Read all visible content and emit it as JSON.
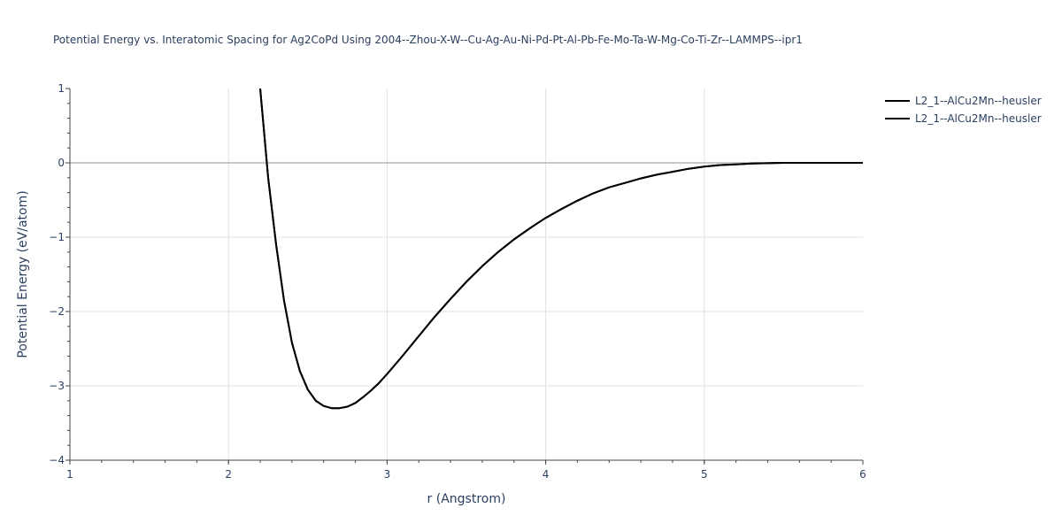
{
  "chart_data": {
    "type": "line",
    "title": "Potential Energy vs. Interatomic Spacing for Ag2CoPd Using 2004--Zhou-X-W--Cu-Ag-Au-Ni-Pd-Pt-Al-Pb-Fe-Mo-Ta-W-Mg-Co-Ti-Zr--LAMMPS--ipr1",
    "xlabel": "r (Angstrom)",
    "ylabel": "Potential Energy (eV/atom)",
    "xlim": [
      1,
      6
    ],
    "ylim": [
      -4,
      1
    ],
    "xticks": [
      1,
      2,
      3,
      4,
      5,
      6
    ],
    "yticks": [
      1,
      0,
      -1,
      -2,
      -3,
      -4
    ],
    "x_tick_labels": [
      "1",
      "2",
      "3",
      "4",
      "5",
      "6"
    ],
    "y_tick_labels": [
      "1",
      "0",
      "−1",
      "−2",
      "−3",
      "−4"
    ],
    "grid": true,
    "legend_position": "top-right",
    "series": [
      {
        "name": "L2_1--AlCu2Mn--heusler",
        "color": "#000000",
        "x": [
          2.2,
          2.25,
          2.3,
          2.35,
          2.4,
          2.45,
          2.5,
          2.55,
          2.6,
          2.65,
          2.7,
          2.75,
          2.8,
          2.85,
          2.9,
          2.95,
          3.0,
          3.1,
          3.2,
          3.3,
          3.4,
          3.5,
          3.6,
          3.7,
          3.8,
          3.9,
          4.0,
          4.1,
          4.2,
          4.3,
          4.4,
          4.5,
          4.6,
          4.7,
          4.8,
          4.9,
          5.0,
          5.1,
          5.2,
          5.3,
          5.4,
          5.5,
          5.6,
          5.8,
          6.0
        ],
        "y": [
          1.0,
          -0.2,
          -1.1,
          -1.85,
          -2.42,
          -2.8,
          -3.05,
          -3.2,
          -3.27,
          -3.3,
          -3.3,
          -3.28,
          -3.23,
          -3.15,
          -3.06,
          -2.96,
          -2.84,
          -2.59,
          -2.33,
          -2.07,
          -1.83,
          -1.6,
          -1.39,
          -1.2,
          -1.03,
          -0.88,
          -0.74,
          -0.62,
          -0.51,
          -0.41,
          -0.33,
          -0.27,
          -0.21,
          -0.16,
          -0.12,
          -0.08,
          -0.05,
          -0.03,
          -0.02,
          -0.01,
          -0.005,
          0.0,
          0.0,
          0.0,
          0.0
        ]
      },
      {
        "name": "L2_1--AlCu2Mn--heusler",
        "color": "#000000",
        "x": [
          2.2,
          2.25,
          2.3,
          2.35,
          2.4,
          2.45,
          2.5,
          2.55,
          2.6,
          2.65,
          2.7,
          2.75,
          2.8,
          2.85,
          2.9,
          2.95,
          3.0,
          3.1,
          3.2,
          3.3,
          3.4,
          3.5,
          3.6,
          3.7,
          3.8,
          3.9,
          4.0,
          4.1,
          4.2,
          4.3,
          4.4,
          4.5,
          4.6,
          4.7,
          4.8,
          4.9,
          5.0,
          5.1,
          5.2,
          5.3,
          5.4,
          5.5,
          5.6,
          5.8,
          6.0
        ],
        "y": [
          1.0,
          -0.2,
          -1.1,
          -1.85,
          -2.42,
          -2.8,
          -3.05,
          -3.2,
          -3.27,
          -3.3,
          -3.3,
          -3.28,
          -3.23,
          -3.15,
          -3.06,
          -2.96,
          -2.84,
          -2.59,
          -2.33,
          -2.07,
          -1.83,
          -1.6,
          -1.39,
          -1.2,
          -1.03,
          -0.88,
          -0.74,
          -0.62,
          -0.51,
          -0.41,
          -0.33,
          -0.27,
          -0.21,
          -0.16,
          -0.12,
          -0.08,
          -0.05,
          -0.03,
          -0.02,
          -0.01,
          -0.005,
          0.0,
          0.0,
          0.0,
          0.0
        ]
      }
    ]
  }
}
